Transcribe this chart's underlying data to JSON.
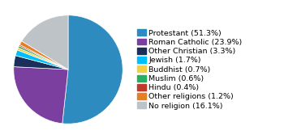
{
  "labels": [
    "Protestant (51.3%)",
    "Roman Catholic (23.9%)",
    "Other Christian (3.3%)",
    "Jewish (1.7%)",
    "Buddhist (0.7%)",
    "Muslim (0.6%)",
    "Hindu (0.4%)",
    "Other religions (1.2%)",
    "No religion (16.1%)"
  ],
  "values": [
    51.3,
    23.9,
    3.3,
    1.7,
    0.7,
    0.6,
    0.4,
    1.2,
    16.1
  ],
  "colors": [
    "#2E8BC0",
    "#7B3FA0",
    "#1A2F5A",
    "#00BFFF",
    "#F4D03F",
    "#27AE60",
    "#C0392B",
    "#E67E22",
    "#BDC3C7"
  ],
  "legend_fontsize": 6.8,
  "startangle": 90
}
